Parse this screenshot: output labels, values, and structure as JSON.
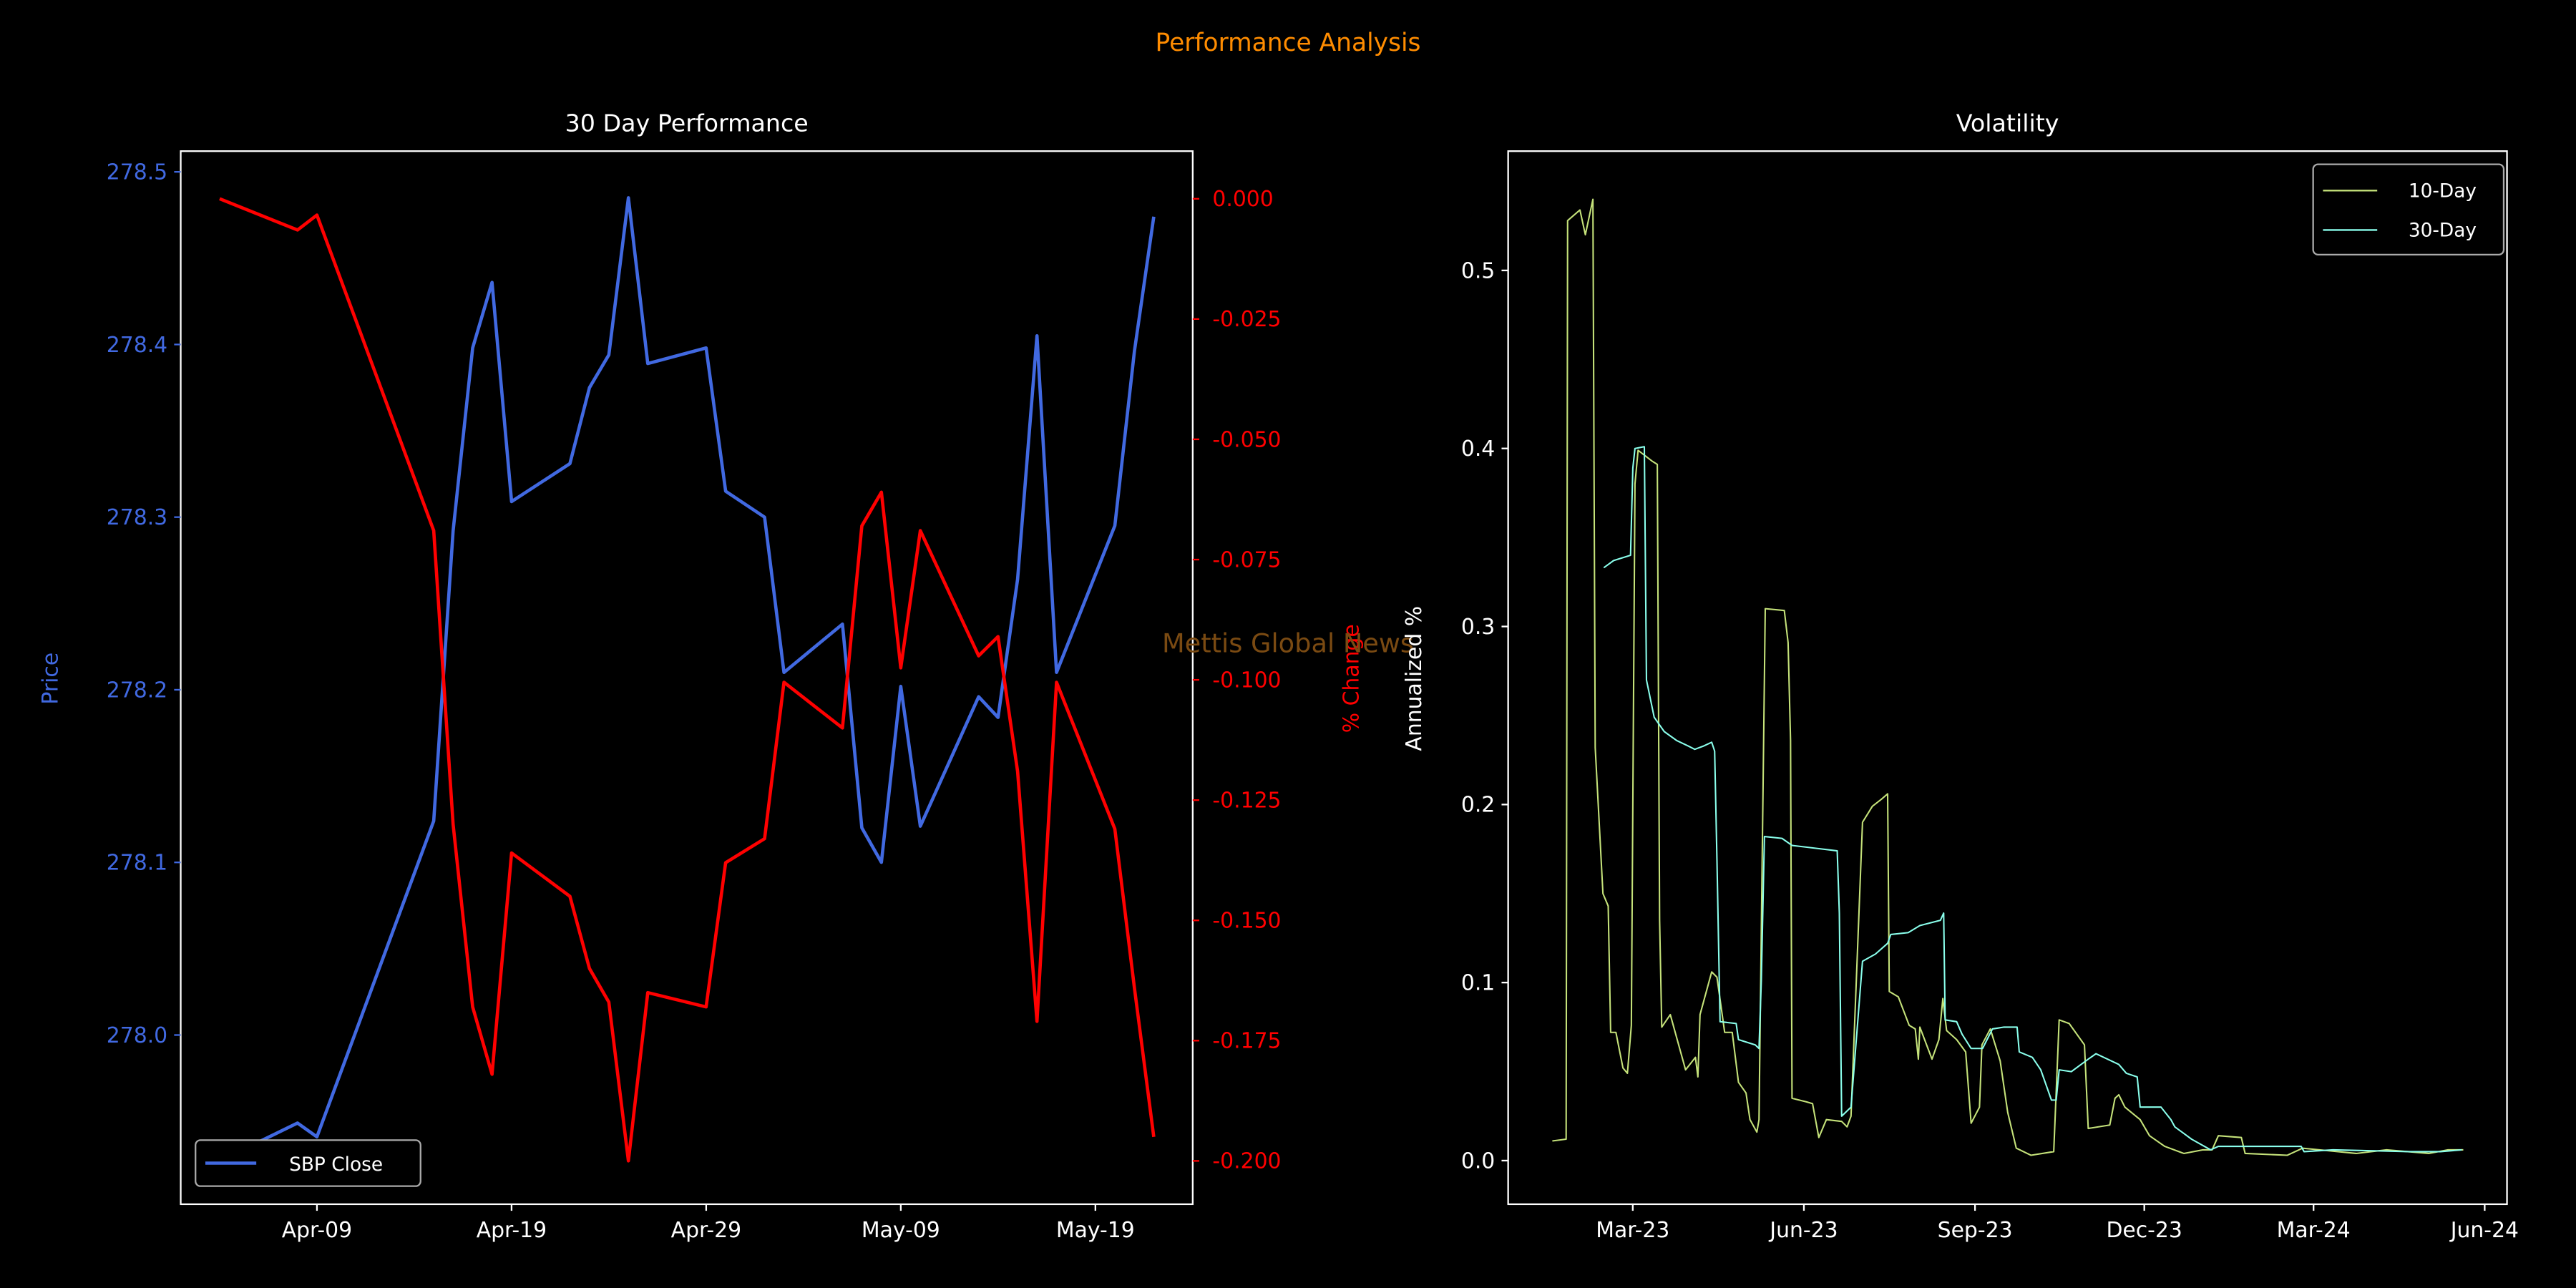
{
  "suptitle": "Performance Analysis",
  "watermark": "Mettis Global News",
  "colors": {
    "price": "#4169e1",
    "pct": "#ff0000",
    "vol10": "#c5e27a",
    "vol30": "#8affec",
    "suptitle": "#ff8c00",
    "watermark": "#7a4a12",
    "axes": "#ffffff",
    "background": "#000000"
  },
  "chart_data": [
    {
      "type": "line",
      "title": "30 Day Performance",
      "xlabel": "",
      "ylabel": "Price",
      "y2label": "% Change",
      "x_ticks": [
        {
          "label": "Apr-09",
          "date": "2024-04-09"
        },
        {
          "label": "Apr-19",
          "date": "2024-04-19"
        },
        {
          "label": "Apr-29",
          "date": "2024-04-29"
        },
        {
          "label": "May-09",
          "date": "2024-05-09"
        },
        {
          "label": "May-19",
          "date": "2024-05-19"
        }
      ],
      "xlim": [
        "2024-04-02",
        "2024-05-24"
      ],
      "ylim": [
        277.902,
        278.512
      ],
      "y2lim": [
        -0.209,
        0.0099
      ],
      "y_ticks": [
        "278.0",
        "278.1",
        "278.2",
        "278.3",
        "278.4",
        "278.5"
      ],
      "y2_ticks": [
        "0.000",
        "-0.025",
        "-0.050",
        "-0.075",
        "-0.100",
        "-0.125",
        "-0.150",
        "-0.175",
        "-0.200"
      ],
      "legend": {
        "entries": [
          "SBP Close"
        ],
        "placement": "lower-left"
      },
      "dates": [
        "2024-04-04",
        "2024-04-08",
        "2024-04-09",
        "2024-04-15",
        "2024-04-16",
        "2024-04-17",
        "2024-04-18",
        "2024-04-19",
        "2024-04-22",
        "2024-04-23",
        "2024-04-24",
        "2024-04-25",
        "2024-04-26",
        "2024-04-29",
        "2024-04-30",
        "2024-05-02",
        "2024-05-03",
        "2024-05-06",
        "2024-05-07",
        "2024-05-08",
        "2024-05-09",
        "2024-05-10",
        "2024-05-13",
        "2024-05-14",
        "2024-05-15",
        "2024-05-16",
        "2024-05-17",
        "2024-05-20",
        "2024-05-21",
        "2024-05-22"
      ],
      "series": [
        {
          "name": "SBP Close",
          "axis": "left",
          "values": [
            277.927,
            277.949,
            277.941,
            278.124,
            278.292,
            278.398,
            278.436,
            278.309,
            278.331,
            278.375,
            278.394,
            278.485,
            278.389,
            278.398,
            278.315,
            278.3,
            278.21,
            278.238,
            278.12,
            278.1,
            278.202,
            278.121,
            278.196,
            278.184,
            278.264,
            278.405,
            278.21,
            278.295,
            278.396,
            278.474
          ]
        },
        {
          "name": "% Change",
          "axis": "right",
          "values": [
            0.0,
            -0.0065,
            -0.0034,
            -0.069,
            -0.13,
            -0.168,
            -0.182,
            -0.136,
            -0.145,
            -0.16,
            -0.167,
            -0.2,
            -0.165,
            -0.168,
            -0.138,
            -0.133,
            -0.1005,
            -0.11,
            -0.068,
            -0.061,
            -0.0975,
            -0.069,
            -0.095,
            -0.091,
            -0.119,
            -0.171,
            -0.1005,
            -0.131,
            -0.164,
            -0.195
          ]
        }
      ]
    },
    {
      "type": "line",
      "title": "Volatility",
      "xlabel": "",
      "ylabel": "Annualized %",
      "x_origin": "2023-03-01",
      "x_unit": "days since x_origin",
      "xlim": [
        -67,
        470
      ],
      "ylim": [
        -0.0245,
        0.567
      ],
      "x_ticks": [
        {
          "label": "Mar-23",
          "day": 0
        },
        {
          "label": "Jun-23",
          "day": 92
        },
        {
          "label": "Sep-23",
          "day": 184
        },
        {
          "label": "Dec-23",
          "day": 275
        },
        {
          "label": "Mar-24",
          "day": 366
        },
        {
          "label": "Jun-24",
          "day": 458
        }
      ],
      "y_ticks": [
        "0.0",
        "0.1",
        "0.2",
        "0.3",
        "0.4",
        "0.5"
      ],
      "legend": {
        "entries": [
          "10-Day",
          "30-Day"
        ],
        "placement": "upper-right"
      },
      "series": [
        {
          "name": "10-Day",
          "points": [
            [
              -43.2,
              0.011
            ],
            [
              -35.8,
              0.012
            ],
            [
              -35,
              0.528
            ],
            [
              -28.4,
              0.534
            ],
            [
              -25.5,
              0.52
            ],
            [
              -21.4,
              0.54
            ],
            [
              -20.2,
              0.232
            ],
            [
              -16,
              0.15
            ],
            [
              -13.2,
              0.143
            ],
            [
              -11.9,
              0.072
            ],
            [
              -9.1,
              0.072
            ],
            [
              -5.3,
              0.052
            ],
            [
              -2.9,
              0.049
            ],
            [
              -0.8,
              0.076
            ],
            [
              1.2,
              0.38
            ],
            [
              2.9,
              0.399
            ],
            [
              10.3,
              0.393
            ],
            [
              13.2,
              0.391
            ],
            [
              14.4,
              0.135
            ],
            [
              15.6,
              0.075
            ],
            [
              20.2,
              0.082
            ],
            [
              28.4,
              0.051
            ],
            [
              33.7,
              0.058
            ],
            [
              35,
              0.047
            ],
            [
              36.2,
              0.082
            ],
            [
              42.4,
              0.106
            ],
            [
              45.3,
              0.103
            ],
            [
              49.4,
              0.072
            ],
            [
              53.5,
              0.072
            ],
            [
              56.8,
              0.044
            ],
            [
              60.9,
              0.038
            ],
            [
              63,
              0.023
            ],
            [
              66.7,
              0.016
            ],
            [
              67.9,
              0.023
            ],
            [
              71.2,
              0.31
            ],
            [
              81.5,
              0.309
            ],
            [
              83.5,
              0.291
            ],
            [
              84.8,
              0.236
            ],
            [
              85.6,
              0.035
            ],
            [
              93.4,
              0.033
            ],
            [
              96.7,
              0.032
            ],
            [
              100,
              0.013
            ],
            [
              104.1,
              0.023
            ],
            [
              112.3,
              0.022
            ],
            [
              115.2,
              0.019
            ],
            [
              117.3,
              0.025
            ],
            [
              123.5,
              0.19
            ],
            [
              128.8,
              0.199
            ],
            [
              133.7,
              0.203
            ],
            [
              137,
              0.206
            ],
            [
              137.9,
              0.095
            ],
            [
              142.8,
              0.092
            ],
            [
              148.6,
              0.076
            ],
            [
              151.9,
              0.074
            ],
            [
              153.5,
              0.057
            ],
            [
              154.3,
              0.075
            ],
            [
              160.9,
              0.057
            ],
            [
              164.6,
              0.068
            ],
            [
              166.7,
              0.091
            ],
            [
              168.7,
              0.073
            ],
            [
              174.1,
              0.068
            ],
            [
              179,
              0.061
            ],
            [
              181.9,
              0.021
            ],
            [
              186.4,
              0.03
            ],
            [
              187.7,
              0.065
            ],
            [
              192.2,
              0.074
            ],
            [
              197.5,
              0.056
            ],
            [
              201.6,
              0.027
            ],
            [
              206.2,
              0.007
            ],
            [
              214,
              0.003
            ],
            [
              226.3,
              0.005
            ],
            [
              229.2,
              0.079
            ],
            [
              234.6,
              0.077
            ],
            [
              242.8,
              0.065
            ],
            [
              244.9,
              0.018
            ],
            [
              256.4,
              0.02
            ],
            [
              259.3,
              0.035
            ],
            [
              261.3,
              0.037
            ],
            [
              264.6,
              0.03
            ],
            [
              272.8,
              0.023
            ],
            [
              277.8,
              0.014
            ],
            [
              286,
              0.008
            ],
            [
              296.3,
              0.004
            ],
            [
              306.6,
              0.006
            ],
            [
              311.5,
              0.006
            ],
            [
              314.8,
              0.014
            ],
            [
              327.2,
              0.013
            ],
            [
              329.2,
              0.004
            ],
            [
              351.9,
              0.003
            ],
            [
              360.1,
              0.007
            ],
            [
              388.9,
              0.004
            ],
            [
              405.3,
              0.006
            ],
            [
              428,
              0.004
            ],
            [
              438.3,
              0.006
            ],
            [
              446.5,
              0.006
            ]
          ]
        },
        {
          "name": "30-Day",
          "points": [
            [
              -15.6,
              0.333
            ],
            [
              -10.3,
              0.337
            ],
            [
              -1.2,
              0.34
            ],
            [
              0,
              0.389
            ],
            [
              1.2,
              0.4
            ],
            [
              6.2,
              0.401
            ],
            [
              7.4,
              0.27
            ],
            [
              11.5,
              0.249
            ],
            [
              16.9,
              0.241
            ],
            [
              23.5,
              0.236
            ],
            [
              29.6,
              0.233
            ],
            [
              33.3,
              0.231
            ],
            [
              38.3,
              0.233
            ],
            [
              42.4,
              0.235
            ],
            [
              44,
              0.23
            ],
            [
              45.3,
              0.169
            ],
            [
              46.9,
              0.078
            ],
            [
              55.6,
              0.077
            ],
            [
              56.8,
              0.068
            ],
            [
              65.8,
              0.065
            ],
            [
              67.9,
              0.063
            ],
            [
              69.1,
              0.101
            ],
            [
              70.8,
              0.182
            ],
            [
              80.2,
              0.181
            ],
            [
              85.6,
              0.177
            ],
            [
              109.9,
              0.174
            ],
            [
              111.1,
              0.139
            ],
            [
              112.3,
              0.025
            ],
            [
              117.3,
              0.03
            ],
            [
              121.4,
              0.084
            ],
            [
              123.5,
              0.112
            ],
            [
              130.5,
              0.116
            ],
            [
              137,
              0.122
            ],
            [
              138.7,
              0.127
            ],
            [
              148.1,
              0.128
            ],
            [
              154.3,
              0.132
            ],
            [
              165.4,
              0.135
            ],
            [
              167.1,
              0.139
            ],
            [
              167.9,
              0.079
            ],
            [
              174.1,
              0.078
            ],
            [
              177,
              0.071
            ],
            [
              181.9,
              0.063
            ],
            [
              188.1,
              0.063
            ],
            [
              193.4,
              0.074
            ],
            [
              199.6,
              0.075
            ],
            [
              206.6,
              0.075
            ],
            [
              207.8,
              0.061
            ],
            [
              214.8,
              0.058
            ],
            [
              219.3,
              0.051
            ],
            [
              225.1,
              0.034
            ],
            [
              227.6,
              0.034
            ],
            [
              229.2,
              0.051
            ],
            [
              235.8,
              0.05
            ],
            [
              244.9,
              0.057
            ],
            [
              249,
              0.06
            ],
            [
              261.3,
              0.054
            ],
            [
              265.4,
              0.049
            ],
            [
              271.2,
              0.047
            ],
            [
              272.8,
              0.03
            ],
            [
              284,
              0.03
            ],
            [
              289.3,
              0.023
            ],
            [
              291.4,
              0.019
            ],
            [
              300.4,
              0.012
            ],
            [
              310.7,
              0.006
            ],
            [
              314.8,
              0.008
            ],
            [
              359.3,
              0.008
            ],
            [
              360.9,
              0.005
            ],
            [
              376.5,
              0.006
            ],
            [
              417.7,
              0.005
            ],
            [
              434.2,
              0.005
            ],
            [
              445.7,
              0.006
            ]
          ]
        }
      ]
    }
  ]
}
